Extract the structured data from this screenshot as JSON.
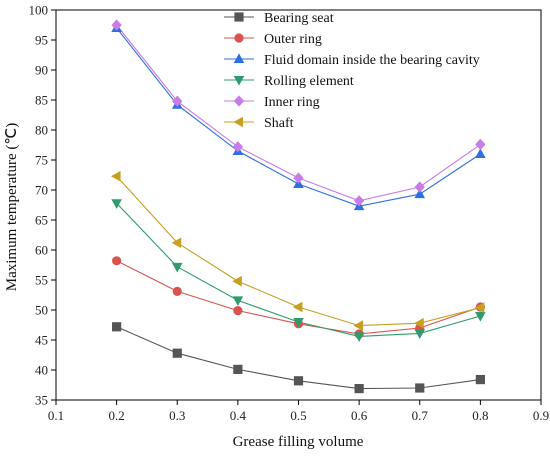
{
  "chart_data": {
    "type": "line",
    "title": "",
    "xlabel": "Grease filling volume",
    "ylabel": "Maximum temperature (℃)",
    "xlim": [
      0.1,
      0.9
    ],
    "ylim": [
      35,
      100
    ],
    "xticks": [
      0.1,
      0.2,
      0.3,
      0.4,
      0.5,
      0.6,
      0.7,
      0.8,
      0.9
    ],
    "xtick_labels": [
      "0.1",
      "0.2",
      "0.3",
      "0.4",
      "0.5",
      "0.6",
      "0.7",
      "0.8",
      "0.9"
    ],
    "yticks": [
      35,
      40,
      45,
      50,
      55,
      60,
      65,
      70,
      75,
      80,
      85,
      90,
      95,
      100
    ],
    "ytick_labels": [
      "35",
      "40",
      "45",
      "50",
      "55",
      "60",
      "65",
      "70",
      "75",
      "80",
      "85",
      "90",
      "95",
      "100"
    ],
    "grid": false,
    "legend_position": "top-right",
    "x": [
      0.2,
      0.3,
      0.4,
      0.5,
      0.6,
      0.7,
      0.8
    ],
    "series": [
      {
        "name": "Bearing seat",
        "marker": "square",
        "color": "#555555",
        "values": [
          47.2,
          42.8,
          40.1,
          38.2,
          36.9,
          37.0,
          38.4
        ]
      },
      {
        "name": "Outer ring",
        "marker": "circle",
        "color": "#d9534f",
        "values": [
          58.2,
          53.1,
          49.9,
          47.7,
          46.0,
          47.0,
          50.5
        ]
      },
      {
        "name": "Fluid domain inside the bearing cavity",
        "marker": "triangle-up",
        "color": "#2f6fe0",
        "values": [
          97.0,
          84.2,
          76.5,
          71.0,
          67.3,
          69.3,
          76.0
        ]
      },
      {
        "name": "Rolling element",
        "marker": "triangle-down",
        "color": "#2e9c6e",
        "values": [
          67.8,
          57.2,
          51.6,
          48.0,
          45.6,
          46.1,
          49.0
        ]
      },
      {
        "name": "Inner ring",
        "marker": "diamond",
        "color": "#c77ce8",
        "values": [
          97.5,
          84.8,
          77.2,
          72.0,
          68.2,
          70.5,
          77.6
        ]
      },
      {
        "name": "Shaft",
        "marker": "triangle-left",
        "color": "#c8a020",
        "values": [
          72.3,
          61.2,
          54.8,
          50.5,
          47.4,
          47.8,
          50.4
        ]
      }
    ]
  }
}
